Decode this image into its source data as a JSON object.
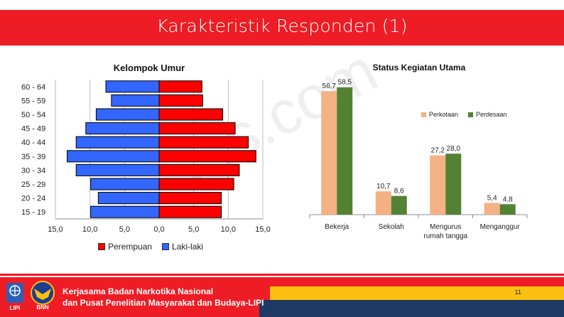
{
  "header": {
    "title": "Karakteristik Responden (1)"
  },
  "watermark": "...s.com",
  "chart_data": [
    {
      "type": "bar",
      "orientation": "horizontal",
      "title": "Kelompok Umur",
      "categories": [
        "15 - 19",
        "20 - 24",
        "25 - 29",
        "30 - 34",
        "35 - 39",
        "40 - 44",
        "45 - 49",
        "50 - 54",
        "55 - 59",
        "60 - 64"
      ],
      "series": [
        {
          "name": "Perempuan",
          "color": "#ff0000",
          "values": [
            9.0,
            9.0,
            10.8,
            11.6,
            14.0,
            12.9,
            11.0,
            9.2,
            6.3,
            6.2
          ]
        },
        {
          "name": "Laki-laki",
          "color": "#3366ff",
          "values": [
            9.9,
            8.8,
            9.9,
            12.0,
            13.3,
            12.0,
            10.6,
            9.1,
            6.9,
            7.7
          ]
        }
      ],
      "xlim": [
        -15,
        15
      ],
      "x_ticks": [
        "15,0",
        "10,0",
        "5,0",
        "0,0",
        "5,0",
        "10,0",
        "15,0"
      ],
      "grid": true,
      "legend_position": "bottom"
    },
    {
      "type": "bar",
      "title": "Status Kegiatan Utama",
      "categories": [
        "Bekerja",
        "Sekolah",
        "Mengurus rumah tangga",
        "Menganggur"
      ],
      "category_lines": [
        [
          "Bekerja"
        ],
        [
          "Sekolah"
        ],
        [
          "Mengurus",
          "rumah tangga"
        ],
        [
          "Menganggur"
        ]
      ],
      "series": [
        {
          "name": "Perkotaan",
          "color": "#f4b183",
          "values": [
            56.7,
            10.7,
            27.2,
            5.4
          ],
          "labels": [
            "56,7",
            "10,7",
            "27,2",
            "5,4"
          ]
        },
        {
          "name": "Perdesaan",
          "color": "#548235",
          "values": [
            58.5,
            8.6,
            28.0,
            4.8
          ],
          "labels": [
            "58,5",
            "8,6",
            "28,0",
            "4,8"
          ]
        }
      ],
      "ylim": [
        0,
        62
      ],
      "legend_position": "top-right"
    }
  ],
  "footer": {
    "line1": "Kerjasama Badan Narkotika Nasional",
    "line2": "dan Pusat Penelitian Masyarakat dan Budaya-LIPI",
    "page_number": "11",
    "logo_lipi_text": "LIPI",
    "logo_bnn_text": "BNN"
  }
}
